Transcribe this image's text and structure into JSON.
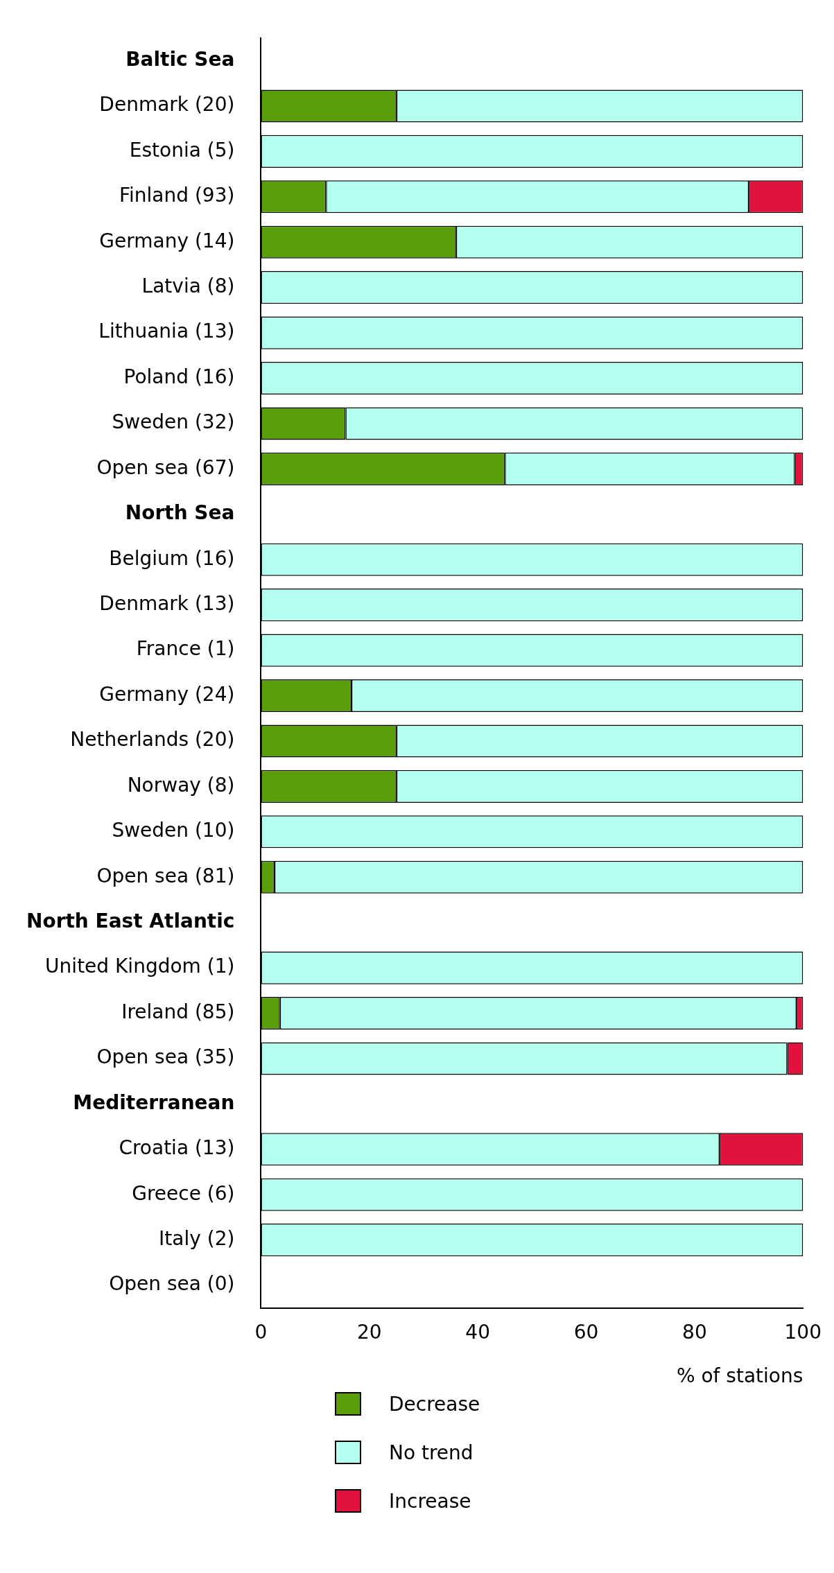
{
  "chart_data": {
    "type": "bar",
    "orientation": "horizontal",
    "stacked": true,
    "xlabel": "% of stations",
    "xlim": [
      0,
      100
    ],
    "xticks": [
      0,
      20,
      40,
      60,
      80,
      100
    ],
    "grid": false,
    "legend": "bottom",
    "categories": [
      "Baltic Sea",
      "Denmark (20)",
      "Estonia (5)",
      "Finland (93)",
      "Germany (14)",
      "Latvia (8)",
      "Lithuania (13)",
      "Poland (16)",
      "Sweden (32)",
      "Open sea (67)",
      "North Sea",
      "Belgium (16)",
      "Denmark (13)",
      "France (1)",
      "Germany (24)",
      "Netherlands (20)",
      "Norway (8)",
      "Sweden (10)",
      "Open sea (81)",
      "North East Atlantic",
      "United Kingdom (1)",
      "Ireland (85)",
      "Open sea (35)",
      "Mediterranean",
      "Croatia (13)",
      "Greece (6)",
      "Italy (2)",
      "Open sea (0)"
    ],
    "series": [
      {
        "name": "Decrease",
        "color": "#5b9e0b",
        "values": [
          null,
          25,
          0,
          12,
          36,
          0,
          0,
          0,
          15.6,
          45,
          null,
          0,
          0,
          0,
          16.7,
          25,
          25,
          0,
          2.5,
          null,
          0,
          3.5,
          0,
          null,
          0,
          0,
          0,
          0
        ]
      },
      {
        "name": "No trend",
        "color": "#b4ffef",
        "values": [
          null,
          75,
          100,
          78,
          64,
          100,
          100,
          100,
          84.4,
          53.5,
          null,
          100,
          100,
          100,
          83.3,
          75,
          75,
          100,
          97.5,
          null,
          100,
          95.3,
          97.1,
          null,
          84.6,
          100,
          100,
          0
        ]
      },
      {
        "name": "Increase",
        "color": "#e2123f",
        "values": [
          null,
          0,
          0,
          10,
          0,
          0,
          0,
          0,
          0,
          1.5,
          null,
          0,
          0,
          0,
          0,
          0,
          0,
          0,
          0,
          null,
          0,
          1.2,
          2.9,
          null,
          15.4,
          0,
          0,
          0
        ]
      }
    ]
  }
}
